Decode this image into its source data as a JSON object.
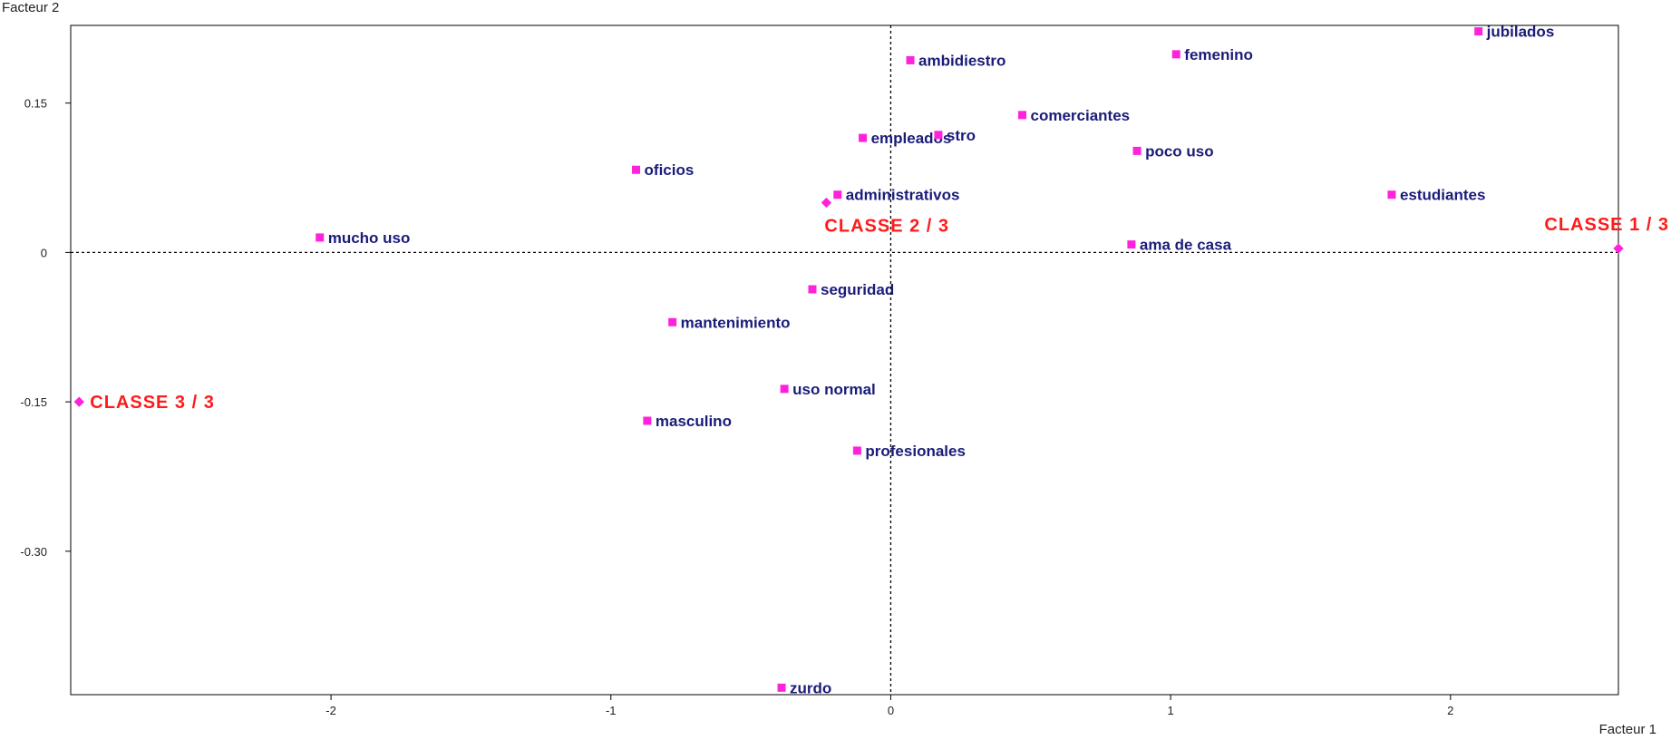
{
  "chart_data": {
    "type": "scatter",
    "title": "",
    "xlabel": "Facteur 1",
    "ylabel": "Facteur 2",
    "xlim": [
      -2.93,
      2.6
    ],
    "ylim": [
      -0.444,
      0.228
    ],
    "x_ticks": [
      -2,
      -1,
      0,
      1,
      2
    ],
    "x_tick_labels": [
      "-2",
      "-1",
      "0",
      "1",
      "2"
    ],
    "y_ticks": [
      0.15,
      0,
      -0.15,
      -0.3
    ],
    "y_tick_labels": [
      "0.15",
      "0",
      "-0.15",
      "-0.30"
    ],
    "grid": false,
    "reference_lines": {
      "x": 0,
      "y": 0,
      "style": "dashed"
    },
    "points": [
      {
        "label": "jubilados",
        "x": 2.1,
        "y": 0.222
      },
      {
        "label": "femenino",
        "x": 1.02,
        "y": 0.199
      },
      {
        "label": "ambidiestro",
        "x": 0.07,
        "y": 0.193
      },
      {
        "label": "comerciantes",
        "x": 0.47,
        "y": 0.138
      },
      {
        "label": "empleados",
        "x": -0.1,
        "y": 0.115
      },
      {
        "label": "stro",
        "x": 0.17,
        "y": 0.118
      },
      {
        "label": "poco uso",
        "x": 0.88,
        "y": 0.102
      },
      {
        "label": "oficios",
        "x": -0.91,
        "y": 0.083
      },
      {
        "label": "administrativos",
        "x": -0.19,
        "y": 0.058
      },
      {
        "label": "estudiantes",
        "x": 1.79,
        "y": 0.058
      },
      {
        "label": "mucho uso",
        "x": -2.04,
        "y": 0.015
      },
      {
        "label": "ama de casa",
        "x": 0.86,
        "y": 0.008
      },
      {
        "label": "seguridad",
        "x": -0.28,
        "y": -0.037
      },
      {
        "label": "mantenimiento",
        "x": -0.78,
        "y": -0.07
      },
      {
        "label": "uso normal",
        "x": -0.38,
        "y": -0.137
      },
      {
        "label": "masculino",
        "x": -0.87,
        "y": -0.169
      },
      {
        "label": "profesionales",
        "x": -0.12,
        "y": -0.199
      },
      {
        "label": "zurdo",
        "x": -0.39,
        "y": -0.437
      }
    ],
    "classes": [
      {
        "label": "CLASSE 1 / 3",
        "x": 2.6,
        "y": 0.004
      },
      {
        "label": "CLASSE 2 / 3",
        "x": -0.23,
        "y": 0.05
      },
      {
        "label": "CLASSE 3 / 3",
        "x": -2.9,
        "y": -0.15
      }
    ],
    "colors": {
      "category_marker": "#ff22dd",
      "category_label": "#1b1b7a",
      "class_label": "#ff1a1a",
      "axis": "#000000"
    }
  }
}
